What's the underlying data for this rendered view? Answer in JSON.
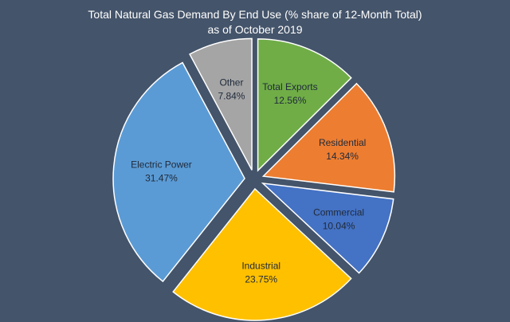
{
  "chart_data": {
    "type": "pie",
    "title": "Total Natural Gas Demand By End Use (% share of 12-Month Total)",
    "subtitle": "as of October  2019",
    "slices": [
      {
        "label": "Total Exports",
        "value": 12.56,
        "display": "12.56%",
        "color": "#70ad47",
        "text_color": "#1f2a3a"
      },
      {
        "label": "Residential",
        "value": 14.34,
        "display": "14.34%",
        "color": "#ed7d31",
        "text_color": "#1f2a3a"
      },
      {
        "label": "Commercial",
        "value": 10.04,
        "display": "10.04%",
        "color": "#4472c4",
        "text_color": "#1f2a3a"
      },
      {
        "label": "Industrial",
        "value": 23.75,
        "display": "23.75%",
        "color": "#ffc000",
        "text_color": "#1f2a3a"
      },
      {
        "label": "Electric Power",
        "value": 31.47,
        "display": "31.47%",
        "color": "#5b9bd5",
        "text_color": "#1f2a3a"
      },
      {
        "label": "Other",
        "value": 7.84,
        "display": "7.84%",
        "color": "#a5a5a5",
        "text_color": "#1f2a3a"
      }
    ],
    "exploded": true,
    "start_angle": "top, clockwise"
  }
}
